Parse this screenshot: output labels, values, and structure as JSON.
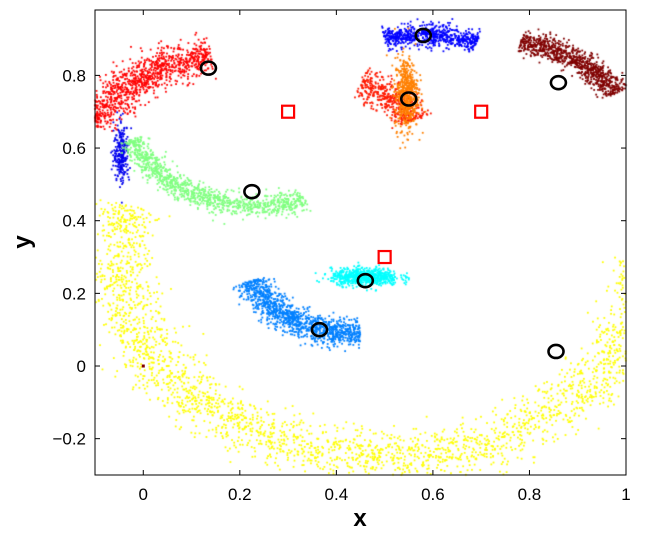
{
  "chart_data": {
    "type": "scatter",
    "xlabel": "x",
    "ylabel": "y",
    "xlim": [
      -0.1,
      1.0
    ],
    "ylim": [
      -0.3,
      0.98
    ],
    "grid": false,
    "legend": "none",
    "x_ticks": [
      0,
      0.2,
      0.4,
      0.6,
      0.8,
      1
    ],
    "x_tick_labels": [
      "0",
      "0.2",
      "0.4",
      "0.6",
      "0.8",
      "1"
    ],
    "y_ticks": [
      -0.2,
      0,
      0.2,
      0.4,
      0.6,
      0.8
    ],
    "y_tick_labels": [
      "−0.2",
      "0",
      "0.2",
      "0.4",
      "0.6",
      "0.8"
    ],
    "clusters": [
      {
        "color": "#ff0000",
        "shape": "arc",
        "center": [
          0.2,
          0.52
        ],
        "radius": 0.34,
        "angle_range_deg": [
          100,
          155
        ],
        "thickness": 0.025,
        "count": 1100
      },
      {
        "color": "#0000ee",
        "shape": "blob",
        "center": [
          -0.045,
          0.585
        ],
        "spread": [
          0.008,
          0.04
        ],
        "count": 260
      },
      {
        "color": "#80ff80",
        "shape": "arc",
        "center": [
          0.24,
          0.72
        ],
        "radius": 0.28,
        "angle_range_deg": [
          200,
          290
        ],
        "thickness": 0.015,
        "count": 1100
      },
      {
        "color": "#0000ff",
        "shape": "arc",
        "center": [
          0.58,
          0.55
        ],
        "radius": 0.36,
        "angle_range_deg": [
          72,
          103
        ],
        "thickness": 0.015,
        "count": 700
      },
      {
        "color": "#800000",
        "shape": "arc",
        "center": [
          0.72,
          0.6
        ],
        "radius": 0.3,
        "angle_range_deg": [
          30,
          78
        ],
        "thickness": 0.015,
        "count": 900
      },
      {
        "color": "#ff1a00",
        "shape": "arc",
        "center": [
          0.4,
          0.6
        ],
        "radius": 0.18,
        "angle_range_deg": [
          25,
          75
        ],
        "thickness": 0.02,
        "count": 500
      },
      {
        "color": "#ff8000",
        "shape": "blob",
        "center": [
          0.545,
          0.75
        ],
        "spread": [
          0.012,
          0.05
        ],
        "count": 550
      },
      {
        "color": "#00ffff",
        "shape": "blob",
        "center": [
          0.46,
          0.245
        ],
        "spread": [
          0.035,
          0.012
        ],
        "count": 700
      },
      {
        "color": "#0080ff",
        "shape": "arc",
        "center": [
          0.43,
          0.31
        ],
        "radius": 0.22,
        "angle_range_deg": [
          200,
          275
        ],
        "thickness": 0.018,
        "count": 1200
      },
      {
        "color": "#ffff00",
        "shape": "arc",
        "center": [
          0.5,
          0.3
        ],
        "radius": 0.55,
        "angle_range_deg": [
          165,
          290
        ],
        "thickness": 0.035,
        "count": 1800
      },
      {
        "color": "#ffff00",
        "shape": "arc",
        "center": [
          0.5,
          0.3
        ],
        "radius": 0.55,
        "angle_range_deg": [
          290,
          360
        ],
        "thickness": 0.035,
        "count": 900
      }
    ],
    "centroids": [
      {
        "x": 0.135,
        "y": 0.82
      },
      {
        "x": 0.225,
        "y": 0.48
      },
      {
        "x": 0.58,
        "y": 0.91
      },
      {
        "x": 0.55,
        "y": 0.735
      },
      {
        "x": 0.86,
        "y": 0.78
      },
      {
        "x": 0.46,
        "y": 0.235
      },
      {
        "x": 0.365,
        "y": 0.1
      },
      {
        "x": 0.855,
        "y": 0.04
      }
    ],
    "square_markers": [
      {
        "x": 0.3,
        "y": 0.7
      },
      {
        "x": 0.7,
        "y": 0.7
      },
      {
        "x": 0.5,
        "y": 0.3
      }
    ],
    "small_marker": {
      "x": 0.0,
      "y": 0.0,
      "color": "#800000"
    },
    "centroid_color": "#000000",
    "square_color": "#ff0000"
  }
}
